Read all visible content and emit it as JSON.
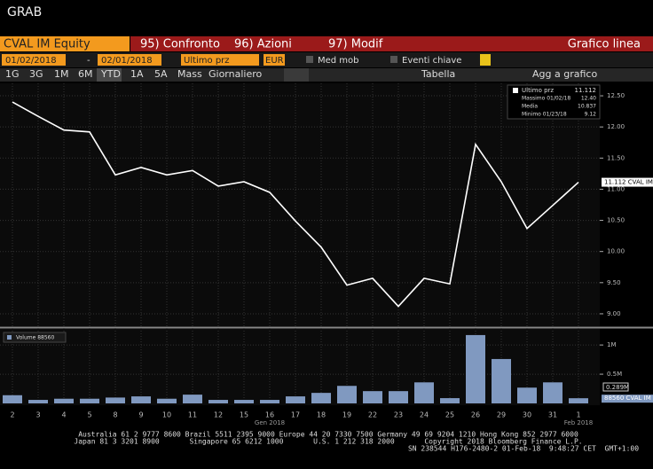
{
  "header": {
    "title": "GRAB"
  },
  "toolbar": {
    "security": "CVAL IM Equity",
    "menus": [
      "95) Confronto",
      "96) Azioni",
      "97) Modif"
    ],
    "chart_type": "Grafico linea"
  },
  "controls": {
    "start_date": "01/02/2018",
    "date_separator": "-",
    "end_date": "02/01/2018",
    "field": "Ultimo prz",
    "currency": "EUR",
    "options": [
      "Med mob",
      "Eventi chiave"
    ],
    "periods": [
      "1G",
      "3G",
      "1M",
      "6M",
      "YTD",
      "1A",
      "5A",
      "Mass"
    ],
    "frequency": "Giornaliero",
    "table": "Tabella",
    "add": "Agg a grafico"
  },
  "chart_data": [
    {
      "type": "line",
      "categories": [
        "2",
        "3",
        "4",
        "5",
        "8",
        "9",
        "10",
        "11",
        "12",
        "15",
        "16",
        "17",
        "18",
        "19",
        "22",
        "23",
        "24",
        "25",
        "26",
        "29",
        "30",
        "31",
        "1"
      ],
      "month_labels": [
        "Gen 2018",
        "Feb 2018"
      ],
      "series": [
        {
          "name": "CVAL IM",
          "color": "#ffffff",
          "values": [
            12.4,
            12.17,
            11.95,
            11.92,
            11.23,
            11.35,
            11.23,
            11.3,
            11.05,
            11.12,
            10.95,
            10.49,
            10.07,
            9.46,
            9.57,
            9.12,
            9.57,
            9.48,
            11.72,
            11.12,
            10.37,
            10.74,
            11.112
          ]
        }
      ],
      "last_label": "11.112 CVAL IM",
      "legend": [
        {
          "name": "Ultimo prz",
          "value": "11.112"
        },
        {
          "name": "Massimo 01/02/18",
          "value": "12.40"
        },
        {
          "name": "Media",
          "value": "10.837"
        },
        {
          "name": "Minimo 01/23/18",
          "value": "9.12"
        }
      ],
      "ylim": [
        8.8,
        12.7
      ],
      "yticks": [
        {
          "value": 9,
          "label": "9.00"
        },
        {
          "value": 9.5,
          "label": "9.50"
        },
        {
          "value": 10,
          "label": "10.00"
        },
        {
          "value": 10.5,
          "label": "10.50"
        },
        {
          "value": 11,
          "label": "11.00"
        },
        {
          "value": 11.5,
          "label": "11.50"
        },
        {
          "value": 12,
          "label": "12.00"
        },
        {
          "value": 12.5,
          "label": "12.50"
        }
      ],
      "grid": true
    },
    {
      "type": "bar",
      "series": [
        {
          "name": "Volume 88560",
          "color": "#8099c0",
          "values": [
            140000,
            60000,
            80000,
            80000,
            100000,
            120000,
            80000,
            150000,
            60000,
            60000,
            60000,
            120000,
            180000,
            300000,
            210000,
            210000,
            360000,
            90000,
            1170000,
            760000,
            270000,
            360000,
            88560
          ]
        }
      ],
      "ylim": [
        0,
        1260000
      ],
      "yticks": [
        {
          "value": 500000,
          "label": "0.5M"
        },
        {
          "value": 1000000,
          "label": "1M"
        }
      ],
      "ma_label": "0.289M",
      "last_label": "88560 CVAL IM"
    }
  ],
  "footer": {
    "lines": [
      "Australia 61 2 9777 8600 Brazil 5511 2395 9000 Europe 44 20 7330 7500 Germany 49 69 9204 1210 Hong Kong 852 2977 6000",
      "Japan 81 3 3201 8900       Singapore 65 6212 1000       U.S. 1 212 318 2000       Copyright 2018 Bloomberg Finance L.P.",
      "SN 238544 H176-2480-2 01-Feb-18  9:48:27 CET  GMT+1:00"
    ]
  }
}
